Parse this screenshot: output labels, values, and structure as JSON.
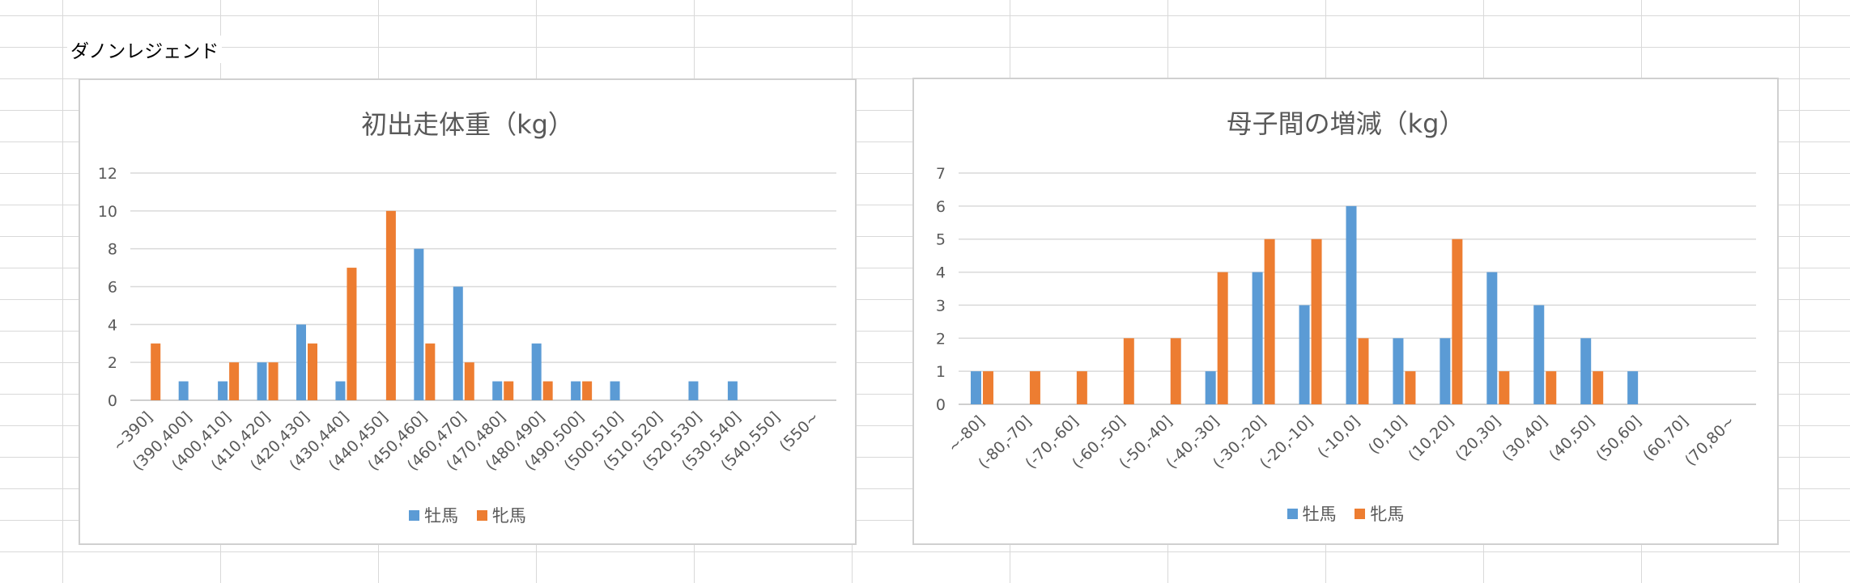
{
  "sheet_label": "ダノンレジェンド",
  "colors": {
    "male": "#5b9bd5",
    "female": "#ed7d31",
    "grid": "#d9d9d9",
    "axis": "#bfbfbf"
  },
  "legend": {
    "male": "牡馬",
    "female": "牝馬"
  },
  "chart_data": [
    {
      "type": "bar",
      "title": "初出走体重（kg）",
      "categories": [
        "~390]",
        "(390,400]",
        "(400,410]",
        "(410,420]",
        "(420,430]",
        "(430,440]",
        "(440,450]",
        "(450,460]",
        "(460,470]",
        "(470,480]",
        "(480,490]",
        "(490,500]",
        "(500,510]",
        "(510,520]",
        "(520,530]",
        "(530,540]",
        "(540,550]",
        "(550~"
      ],
      "series": [
        {
          "name": "牡馬",
          "values": [
            0,
            1,
            1,
            2,
            4,
            1,
            0,
            8,
            6,
            1,
            3,
            1,
            1,
            0,
            1,
            1,
            0,
            0
          ]
        },
        {
          "name": "牝馬",
          "values": [
            3,
            0,
            2,
            2,
            3,
            7,
            10,
            3,
            2,
            1,
            1,
            1,
            0,
            0,
            0,
            0,
            0,
            0
          ]
        }
      ],
      "ylim": [
        0,
        12
      ],
      "yticks": [
        0,
        2,
        4,
        6,
        8,
        10,
        12
      ],
      "grid": true,
      "legend_position": "bottom"
    },
    {
      "type": "bar",
      "title": "母子間の増減（kg）",
      "categories": [
        "~-80]",
        "(-80,-70]",
        "(-70,-60]",
        "(-60,-50]",
        "(-50,-40]",
        "(-40,-30]",
        "(-30,-20]",
        "(-20,-10]",
        "(-10,0]",
        "(0,10]",
        "(10,20]",
        "(20,30]",
        "(30,40]",
        "(40,50]",
        "(50,60]",
        "(60,70]",
        "(70,80~"
      ],
      "series": [
        {
          "name": "牡馬",
          "values": [
            1,
            0,
            0,
            0,
            0,
            1,
            4,
            3,
            6,
            2,
            2,
            4,
            3,
            2,
            1,
            0,
            0
          ]
        },
        {
          "name": "牝馬",
          "values": [
            1,
            1,
            1,
            2,
            2,
            4,
            5,
            5,
            2,
            1,
            5,
            1,
            1,
            1,
            0,
            0,
            0
          ]
        }
      ],
      "ylim": [
        0,
        7
      ],
      "yticks": [
        0,
        1,
        2,
        3,
        4,
        5,
        6,
        7
      ],
      "grid": true,
      "legend_position": "bottom"
    }
  ]
}
